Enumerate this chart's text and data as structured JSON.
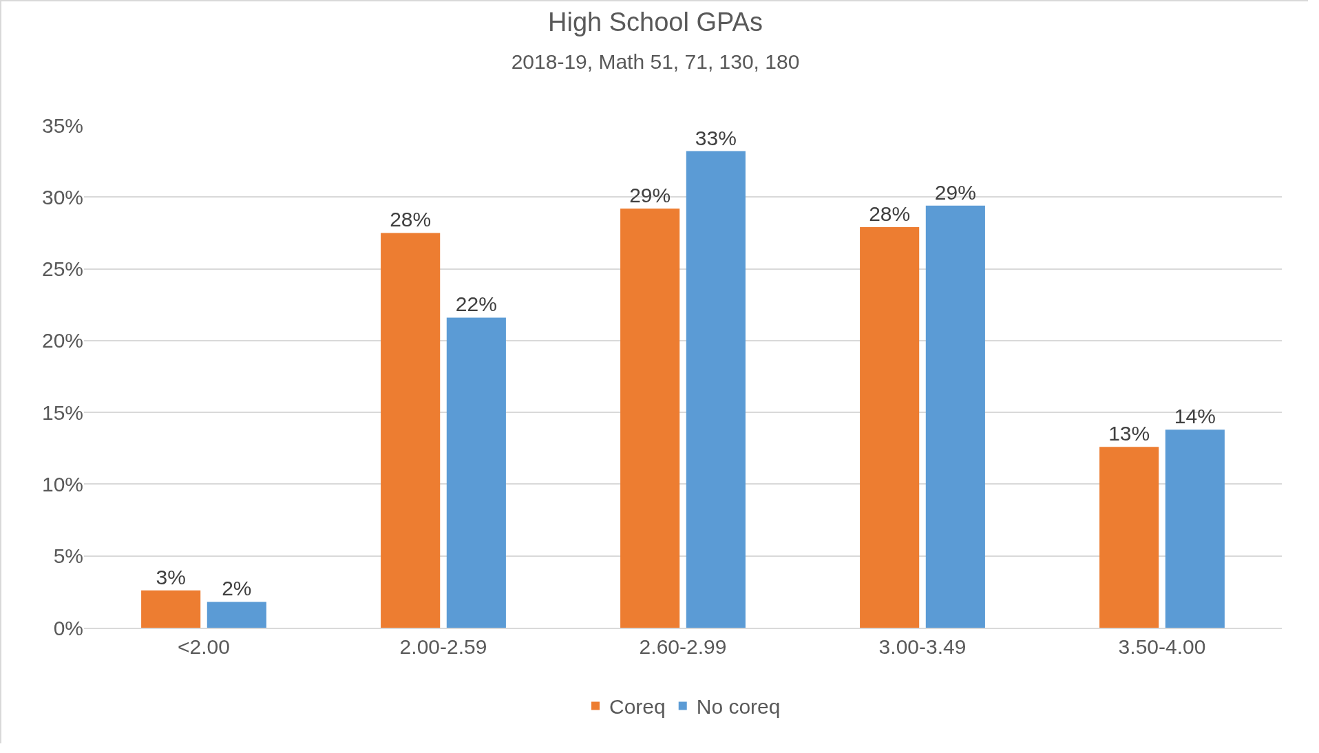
{
  "chart_data": {
    "type": "bar",
    "title": "High School GPAs",
    "subtitle": "2018-19, Math 51, 71, 130, 180",
    "categories": [
      "<2.00",
      "2.00-2.59",
      "2.60-2.99",
      "3.00-3.49",
      "3.50-4.00"
    ],
    "series": [
      {
        "name": "Coreq",
        "color": "#ed7d31",
        "values": [
          2.6,
          27.5,
          29.2,
          27.9,
          12.6
        ],
        "value_labels": [
          "3%",
          "28%",
          "29%",
          "28%",
          "13%"
        ]
      },
      {
        "name": "No coreq",
        "color": "#5b9bd5",
        "values": [
          1.8,
          21.6,
          33.2,
          29.4,
          13.8
        ],
        "value_labels": [
          "2%",
          "22%",
          "33%",
          "29%",
          "14%"
        ]
      }
    ],
    "ylim": [
      0,
      35
    ],
    "yticks": [
      {
        "value": 0,
        "label": "0%"
      },
      {
        "value": 5,
        "label": "5%"
      },
      {
        "value": 10,
        "label": "10%"
      },
      {
        "value": 15,
        "label": "15%"
      },
      {
        "value": 20,
        "label": "20%"
      },
      {
        "value": 25,
        "label": "25%"
      },
      {
        "value": 30,
        "label": "30%"
      },
      {
        "value": 35,
        "label": "35%"
      }
    ],
    "grid": "y",
    "legend": "bottom"
  }
}
